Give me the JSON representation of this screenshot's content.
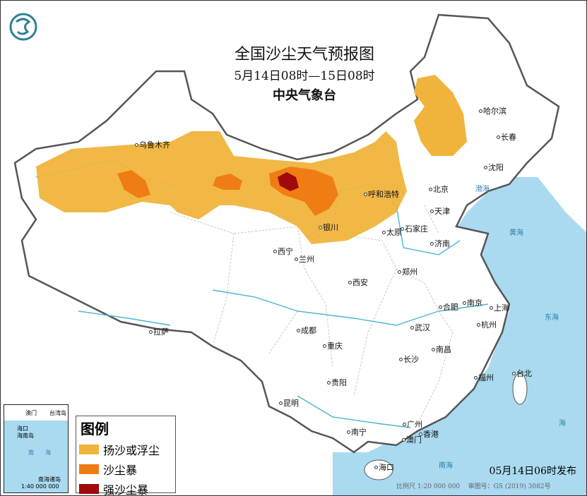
{
  "header": {
    "title": "全国沙尘天气预报图",
    "period": "5月14日08时—15日08时",
    "agency": "中央气象台",
    "logo": "cma-logo"
  },
  "colors": {
    "sea": "#a9daf0",
    "land": "#ffffff",
    "river": "#4bb3d6",
    "yangsha": "#f0b43c",
    "shachenbao": "#f07c14",
    "qiangshachenbao": "#a00a0a"
  },
  "legend": {
    "title": "图例",
    "items": [
      {
        "label": "扬沙或浮尘",
        "color": "#f0b43c"
      },
      {
        "label": "沙尘暴",
        "color": "#f07c14"
      },
      {
        "label": "强沙尘暴",
        "color": "#a00a0a"
      }
    ]
  },
  "cities": [
    "乌鲁木齐",
    "哈尔滨",
    "长春",
    "沈阳",
    "北京",
    "天津",
    "呼和浩特",
    "石家庄",
    "太原",
    "银川",
    "济南",
    "西宁",
    "兰州",
    "郑州",
    "西安",
    "合肥",
    "南京",
    "上海",
    "杭州",
    "武汉",
    "成都",
    "拉萨",
    "重庆",
    "南昌",
    "长沙",
    "台北",
    "福州",
    "贵阳",
    "昆明",
    "南宁",
    "广州",
    "香港",
    "澳门",
    "海口"
  ],
  "seas": [
    "渤海",
    "黄海",
    "东海",
    "南海",
    "海"
  ],
  "inset": {
    "labels": [
      "澳门",
      "台湾岛",
      "海口",
      "海南岛",
      "南",
      "海",
      "南海诸岛"
    ],
    "scale": "1:40 000 000"
  },
  "footer": {
    "issued": "05月14日06时发布",
    "scale": "比例尺 1:20 000 000",
    "approval": "审图号：GS (2019) 3082号"
  }
}
